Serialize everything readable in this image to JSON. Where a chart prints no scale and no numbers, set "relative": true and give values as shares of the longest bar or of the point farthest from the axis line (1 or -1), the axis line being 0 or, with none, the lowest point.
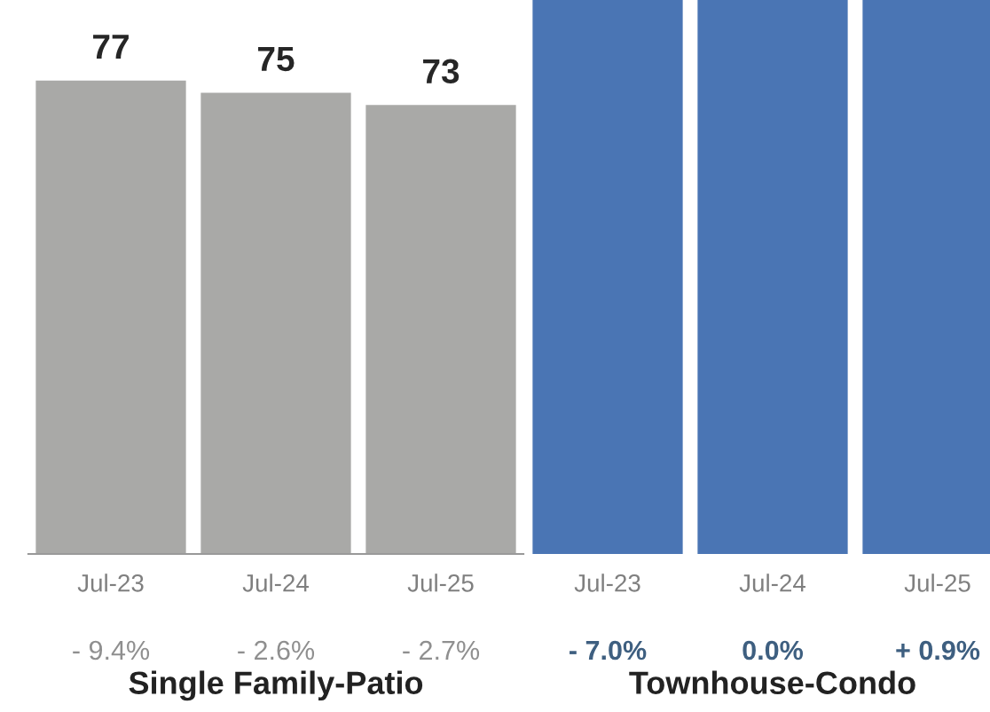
{
  "chart_data": [
    {
      "type": "bar",
      "categories": [
        "Jul-23",
        "Jul-24",
        "Jul-25"
      ],
      "values": [
        77,
        75,
        73
      ],
      "color": "#a9a9a7",
      "data_labels": true,
      "xlabel": "Single Family-Patio",
      "annotations": [
        "- 9.4%",
        "- 2.6%",
        "- 2.7%"
      ]
    },
    {
      "type": "bar",
      "categories": [
        "Jul-23",
        "Jul-24",
        "Jul-25"
      ],
      "values": [
        1,
        1,
        1
      ],
      "color": "#4a75b4",
      "relative": true,
      "xlabel": "Townhouse-Condo",
      "annotations": [
        "- 7.0%",
        "0.0%",
        "+ 0.9%"
      ]
    }
  ]
}
